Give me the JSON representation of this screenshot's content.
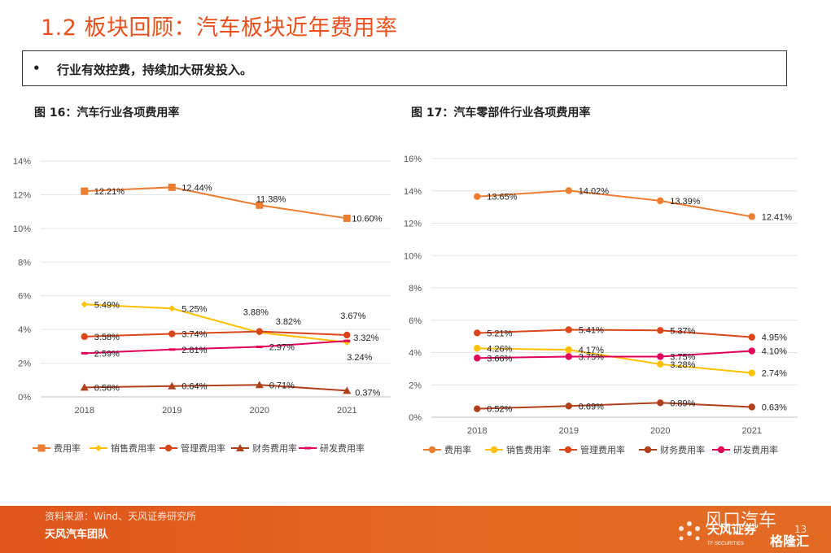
{
  "header": {
    "title": "1.2 板块回顾：汽车板块近年费用率",
    "bullet": "行业有效控费，持续加大研发投入。"
  },
  "footer": {
    "source": "资料来源：Wind、天风证券研究所",
    "team": "天风汽车团队",
    "page_number": "13",
    "watermark": "风口汽车",
    "brand_cn": "天风证券",
    "brand_en": "TF SECURITIES",
    "watermark2": "格隆汇"
  },
  "colors": {
    "accent": "#e8501e",
    "series": [
      "#ed7d31",
      "#ffc000",
      "#d9461c",
      "#b0401c",
      "#e0005a"
    ]
  },
  "chart_data": [
    {
      "figure_title": "图 16：汽车行业各项费用率",
      "type": "line",
      "categories": [
        "2018",
        "2019",
        "2020",
        "2021"
      ],
      "ylim": [
        0,
        14
      ],
      "yticks": [
        "0%",
        "2%",
        "4%",
        "6%",
        "8%",
        "10%",
        "12%",
        "14%"
      ],
      "grid": true,
      "legend": "bottom",
      "series": [
        {
          "name": "费用率",
          "marker": "square",
          "color": "#ed7d31",
          "values": [
            12.21,
            12.44,
            11.38,
            10.6
          ],
          "labels": [
            "12.21%",
            "12.44%",
            "11.38%",
            "10.60%"
          ]
        },
        {
          "name": "销售费用率",
          "marker": "diamond",
          "color": "#ffc000",
          "values": [
            5.49,
            5.25,
            3.82,
            3.24
          ],
          "labels": [
            "5.49%",
            "5.25%",
            "3.82%",
            "3.24%"
          ]
        },
        {
          "name": "管理费用率",
          "marker": "circle",
          "color": "#d9461c",
          "values": [
            3.58,
            3.74,
            3.88,
            3.67
          ],
          "labels": [
            "3.58%",
            "3.74%",
            "3.88%",
            "3.67%"
          ]
        },
        {
          "name": "财务费用率",
          "marker": "triangle",
          "color": "#b0401c",
          "values": [
            0.56,
            0.64,
            0.71,
            0.37
          ],
          "labels": [
            "0.56%",
            "0.64%",
            "0.71%",
            "0.37%"
          ]
        },
        {
          "name": "研发费用率",
          "marker": "dash",
          "color": "#e0005a",
          "values": [
            2.59,
            2.81,
            2.97,
            3.32
          ],
          "labels": [
            "2.59%",
            "2.81%",
            "2.97%",
            "3.32%"
          ]
        }
      ]
    },
    {
      "figure_title": "图 17：汽车零部件行业各项费用率",
      "type": "line",
      "categories": [
        "2018",
        "2019",
        "2020",
        "2021"
      ],
      "ylim": [
        0,
        16
      ],
      "yticks": [
        "0%",
        "2%",
        "4%",
        "6%",
        "8%",
        "10%",
        "12%",
        "14%",
        "16%"
      ],
      "grid": true,
      "legend": "bottom",
      "series": [
        {
          "name": "费用率",
          "marker": "circle",
          "color": "#ed7d31",
          "values": [
            13.65,
            14.02,
            13.39,
            12.41
          ],
          "labels": [
            "13.65%",
            "14.02%",
            "13.39%",
            "12.41%"
          ]
        },
        {
          "name": "销售费用率",
          "marker": "circle",
          "color": "#ffc000",
          "values": [
            4.26,
            4.17,
            3.28,
            2.74
          ],
          "labels": [
            "4.26%",
            "4.17%",
            "3.28%",
            "2.74%"
          ]
        },
        {
          "name": "管理费用率",
          "marker": "circle",
          "color": "#d9461c",
          "values": [
            5.21,
            5.41,
            5.37,
            4.95
          ],
          "labels": [
            "5.21%",
            "5.41%",
            "5.37%",
            "4.95%"
          ]
        },
        {
          "name": "财务费用率",
          "marker": "circle",
          "color": "#b0401c",
          "values": [
            0.52,
            0.69,
            0.89,
            0.63
          ],
          "labels": [
            "0.52%",
            "0.69%",
            "0.89%",
            "0.63%"
          ]
        },
        {
          "name": "研发费用率",
          "marker": "circle",
          "color": "#e0005a",
          "values": [
            3.66,
            3.75,
            3.75,
            4.1
          ],
          "labels": [
            "3.66%",
            "3.75%",
            "3.75%",
            "4.10%"
          ]
        }
      ]
    }
  ]
}
